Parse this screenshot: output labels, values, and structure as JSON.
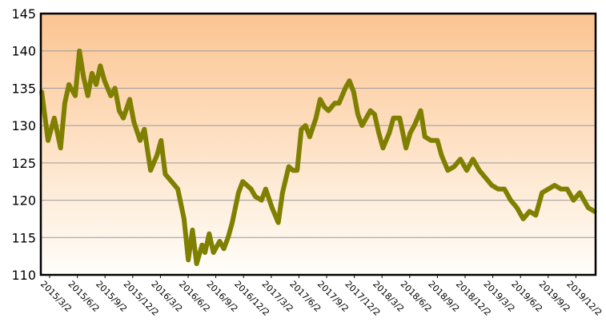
{
  "chart_data": {
    "type": "line",
    "title": "",
    "xlabel": "",
    "ylabel": "",
    "ylim": [
      110,
      145
    ],
    "y_ticks": [
      110,
      115,
      120,
      125,
      130,
      135,
      140,
      145
    ],
    "x_tick_labels": [
      "2015/3/2",
      "2015/6/2",
      "2015/9/2",
      "2015/12/2",
      "2016/3/2",
      "2016/6/2",
      "2016/9/2",
      "2016/12/2",
      "2017/3/2",
      "2017/6/2",
      "2017/9/2",
      "2017/12/2",
      "2018/3/2",
      "2018/6/2",
      "2018/9/2",
      "2018/12/2",
      "2019/3/2",
      "2019/6/2",
      "2019/9/2",
      "2019/12/2"
    ],
    "grid": true,
    "legend": "none",
    "colors": {
      "line": "#7f7f00",
      "background_top": "#fcc490",
      "background_bottom": "#fffefa",
      "frame": "#000000",
      "grid": "#9a9a9a"
    },
    "series": [
      {
        "x": [
          "2015/1/5",
          "2015/1/26",
          "2015/2/16",
          "2015/3/9",
          "2015/3/23",
          "2015/4/6",
          "2015/4/27",
          "2015/5/11",
          "2015/5/25",
          "2015/6/8",
          "2015/6/22",
          "2015/7/6",
          "2015/7/20",
          "2015/8/3",
          "2015/8/24",
          "2015/9/7",
          "2015/9/21",
          "2015/10/5",
          "2015/10/26",
          "2015/11/9",
          "2015/11/30",
          "2015/12/14",
          "2016/1/4",
          "2016/1/25",
          "2016/2/8",
          "2016/2/22",
          "2016/3/14",
          "2016/4/4",
          "2016/4/25",
          "2016/5/9",
          "2016/5/23",
          "2016/6/6",
          "2016/6/24",
          "2016/7/4",
          "2016/7/18",
          "2016/8/1",
          "2016/8/22",
          "2016/9/5",
          "2016/9/19",
          "2016/10/3",
          "2016/10/24",
          "2016/11/7",
          "2016/11/21",
          "2016/12/5",
          "2016/12/19",
          "2017/1/9",
          "2017/1/23",
          "2017/2/13",
          "2017/3/6",
          "2017/3/20",
          "2017/4/10",
          "2017/4/24",
          "2017/5/8",
          "2017/5/22",
          "2017/6/5",
          "2017/6/19",
          "2017/7/10",
          "2017/7/24",
          "2017/8/7",
          "2017/8/21",
          "2017/9/11",
          "2017/9/25",
          "2017/10/16",
          "2017/10/30",
          "2017/11/13",
          "2017/11/27",
          "2017/12/11",
          "2018/1/8",
          "2018/1/22",
          "2018/2/5",
          "2018/2/19",
          "2018/3/12",
          "2018/3/26",
          "2018/4/16",
          "2018/5/7",
          "2018/5/21",
          "2018/6/4",
          "2018/6/25",
          "2018/7/9",
          "2018/7/30",
          "2018/8/20",
          "2018/9/3",
          "2018/9/24",
          "2018/10/15",
          "2018/11/5",
          "2018/11/26",
          "2018/12/17",
          "2019/1/7",
          "2019/1/28",
          "2019/2/18",
          "2019/3/11",
          "2019/4/1",
          "2019/4/22",
          "2019/5/13",
          "2019/6/3",
          "2019/6/24",
          "2019/7/15",
          "2019/8/5",
          "2019/8/26",
          "2019/9/16",
          "2019/10/7",
          "2019/10/28",
          "2019/11/18",
          "2019/12/9",
          "2020/1/6",
          "2020/1/27"
        ],
        "y": [
          134.5,
          128,
          131,
          127,
          133,
          135.5,
          134,
          140,
          136.5,
          134,
          137,
          135.5,
          138,
          136,
          134,
          135,
          132,
          131,
          133.5,
          130.5,
          128,
          129.5,
          124,
          126,
          128,
          123.5,
          122.5,
          121.5,
          117.5,
          112,
          116,
          111.5,
          114,
          113,
          115.5,
          113,
          114.5,
          113.5,
          115,
          117,
          121,
          122.5,
          122,
          121.5,
          120.5,
          120,
          121.5,
          119,
          117,
          121,
          124.5,
          124,
          124,
          129.5,
          130,
          128.5,
          131,
          133.5,
          132.5,
          132,
          133,
          133,
          135,
          136,
          134.5,
          131.5,
          130,
          132,
          131.5,
          129,
          127,
          129,
          131,
          131,
          127,
          129,
          130,
          132,
          128.5,
          128,
          128,
          126,
          124,
          124.5,
          125.5,
          124,
          125.5,
          124,
          123,
          122,
          121.5,
          121.5,
          120,
          119,
          117.5,
          118.5,
          118,
          121,
          121.5,
          122,
          121.5,
          121.5,
          120,
          121,
          119,
          118.5
        ]
      }
    ]
  }
}
